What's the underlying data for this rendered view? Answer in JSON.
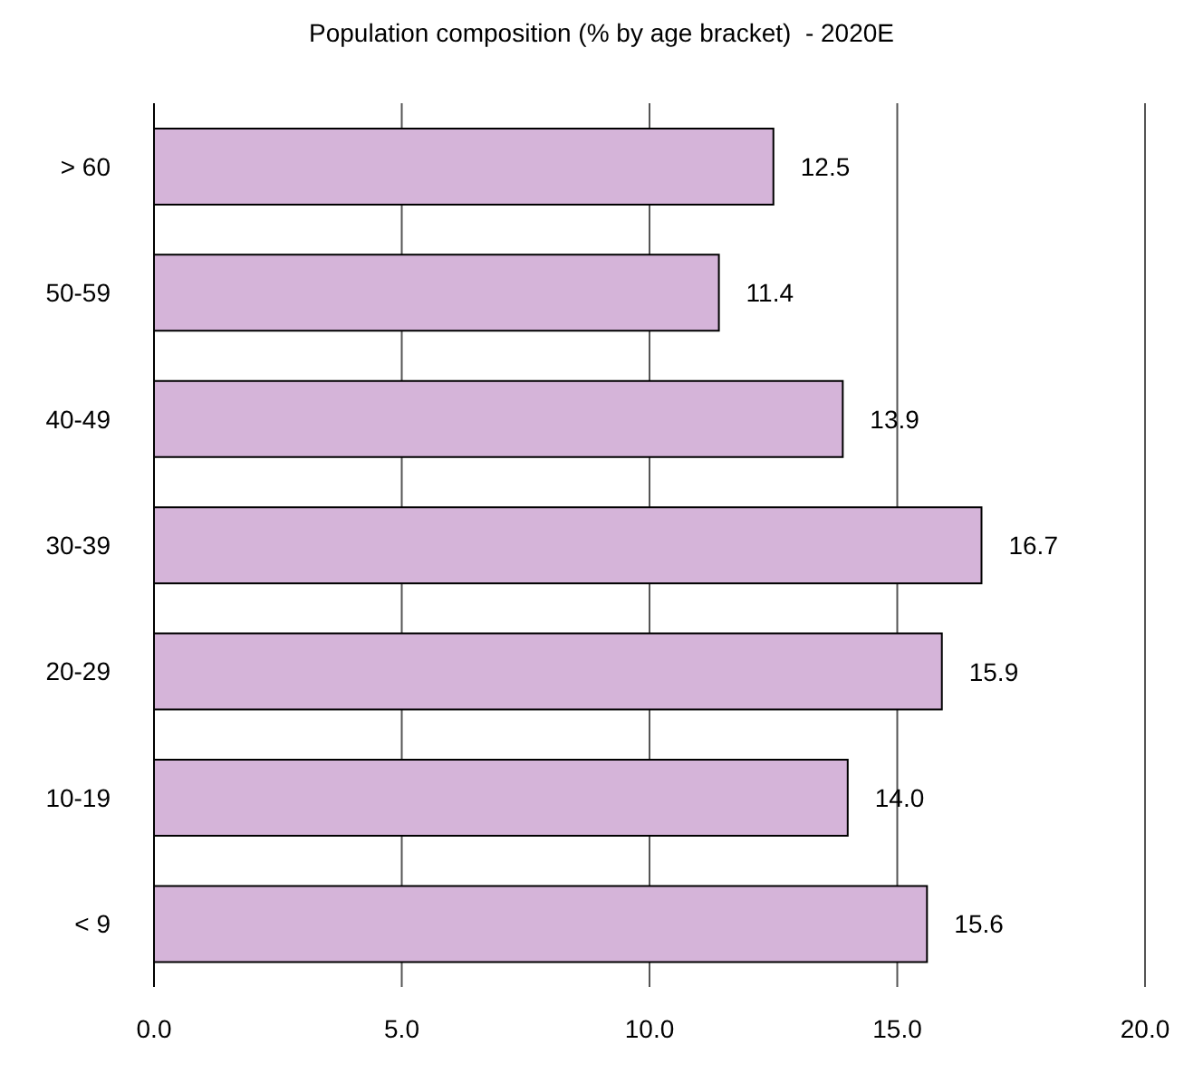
{
  "chart_data": {
    "type": "bar",
    "orientation": "horizontal",
    "title": "Population composition (% by age bracket)  - 2020E",
    "categories": [
      "> 60",
      "50-59",
      "40-49",
      "30-39",
      "20-29",
      "10-19",
      "< 9"
    ],
    "values": [
      12.5,
      11.4,
      13.9,
      16.7,
      15.9,
      14.0,
      15.6
    ],
    "value_labels": [
      "12.5",
      "11.4",
      "13.9",
      "16.7",
      "15.9",
      "14.0",
      "15.6"
    ],
    "color": "#d5b4d9",
    "xlim": [
      0,
      20
    ],
    "xticks": [
      {
        "value": 0,
        "label": "0.0"
      },
      {
        "value": 5,
        "label": "5.0"
      },
      {
        "value": 10,
        "label": "10.0"
      },
      {
        "value": 15,
        "label": "15.0"
      },
      {
        "value": 20,
        "label": "20.0"
      }
    ],
    "grid": "x"
  }
}
